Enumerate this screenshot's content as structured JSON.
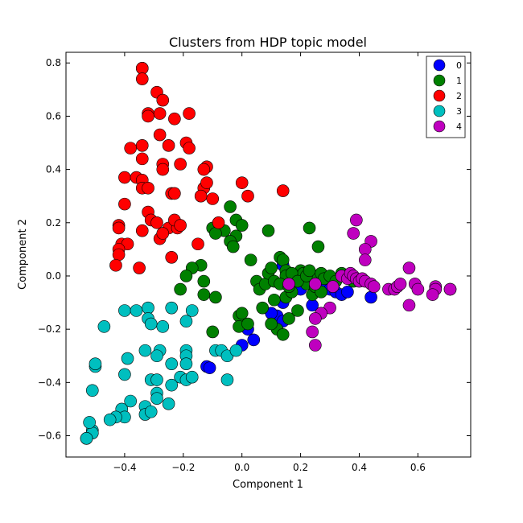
{
  "chart_data": {
    "type": "scatter",
    "title": "Clusters from HDP topic model",
    "xlabel": "Component 1",
    "ylabel": "Component 2",
    "xlim": [
      -0.6,
      0.78
    ],
    "ylim": [
      -0.68,
      0.84
    ],
    "xticks": [
      -0.4,
      -0.2,
      0.0,
      0.2,
      0.4,
      0.6
    ],
    "xtick_labels": [
      "−0.4",
      "−0.2",
      "0.0",
      "0.2",
      "0.4",
      "0.6"
    ],
    "yticks": [
      -0.6,
      -0.4,
      -0.2,
      0.0,
      0.2,
      0.4,
      0.6,
      0.8
    ],
    "ytick_labels": [
      "−0.6",
      "−0.4",
      "−0.2",
      "0.0",
      "0.2",
      "0.4",
      "0.6",
      "0.8"
    ],
    "grid": false,
    "legend_position": "top-right",
    "series": [
      {
        "name": "0",
        "color": "#0000ff",
        "points": [
          [
            0.14,
            0.04
          ],
          [
            0.16,
            0.01
          ],
          [
            0.18,
            0.0
          ],
          [
            0.2,
            -0.01
          ],
          [
            0.22,
            -0.02
          ],
          [
            0.24,
            -0.03
          ],
          [
            0.26,
            -0.05
          ],
          [
            0.28,
            -0.04
          ],
          [
            0.3,
            -0.05
          ],
          [
            0.32,
            -0.06
          ],
          [
            0.34,
            -0.07
          ],
          [
            0.36,
            -0.06
          ],
          [
            0.44,
            -0.08
          ],
          [
            0.2,
            -0.05
          ],
          [
            0.24,
            -0.11
          ],
          [
            0.14,
            -0.1
          ],
          [
            0.12,
            -0.15
          ],
          [
            0.14,
            -0.17
          ],
          [
            0.1,
            -0.14
          ],
          [
            0.02,
            -0.2
          ],
          [
            0.04,
            -0.24
          ],
          [
            0.0,
            -0.26
          ],
          [
            -0.12,
            -0.34
          ],
          [
            -0.11,
            -0.345
          ]
        ]
      },
      {
        "name": "1",
        "color": "#008000",
        "points": [
          [
            -0.04,
            0.26
          ],
          [
            -0.02,
            0.21
          ],
          [
            0.0,
            0.19
          ],
          [
            -0.06,
            0.17
          ],
          [
            -0.02,
            0.15
          ],
          [
            -0.04,
            0.13
          ],
          [
            -0.03,
            0.11
          ],
          [
            -0.1,
            0.18
          ],
          [
            -0.09,
            0.16
          ],
          [
            0.09,
            0.17
          ],
          [
            0.03,
            0.06
          ],
          [
            -0.14,
            0.04
          ],
          [
            -0.17,
            0.03
          ],
          [
            -0.19,
            -0.0
          ],
          [
            -0.21,
            -0.05
          ],
          [
            -0.13,
            -0.02
          ],
          [
            -0.09,
            -0.08
          ],
          [
            -0.13,
            -0.07
          ],
          [
            -0.1,
            -0.21
          ],
          [
            -0.01,
            -0.15
          ],
          [
            0.0,
            -0.14
          ],
          [
            -0.01,
            -0.19
          ],
          [
            0.02,
            -0.18
          ],
          [
            0.05,
            -0.02
          ],
          [
            0.06,
            -0.05
          ],
          [
            0.07,
            -0.12
          ],
          [
            0.08,
            -0.03
          ],
          [
            0.09,
            0.01
          ],
          [
            0.1,
            0.03
          ],
          [
            0.11,
            -0.02
          ],
          [
            0.11,
            -0.09
          ],
          [
            0.12,
            -0.2
          ],
          [
            0.13,
            0.07
          ],
          [
            0.14,
            0.06
          ],
          [
            0.15,
            0.02
          ],
          [
            0.15,
            -0.08
          ],
          [
            0.16,
            -0.16
          ],
          [
            0.17,
            -0.06
          ],
          [
            0.18,
            0.0
          ],
          [
            0.19,
            -0.13
          ],
          [
            0.2,
            0.02
          ],
          [
            0.21,
            0.01
          ],
          [
            0.22,
            -0.03
          ],
          [
            0.23,
            0.18
          ],
          [
            0.24,
            -0.07
          ],
          [
            0.25,
            0.0
          ],
          [
            0.26,
            0.11
          ],
          [
            0.27,
            0.01
          ],
          [
            0.28,
            -0.01
          ],
          [
            0.3,
            0.0
          ],
          [
            0.32,
            -0.02
          ],
          [
            0.34,
            0.01
          ],
          [
            0.36,
            0.0
          ],
          [
            0.38,
            -0.02
          ],
          [
            0.14,
            -0.22
          ],
          [
            0.1,
            -0.18
          ],
          [
            0.15,
            0.0
          ],
          [
            0.17,
            0.01
          ],
          [
            0.19,
            -0.02
          ],
          [
            0.22,
            0.0
          ],
          [
            0.25,
            -0.04
          ],
          [
            0.13,
            -0.03
          ],
          [
            0.16,
            -0.04
          ],
          [
            0.23,
            0.02
          ],
          [
            0.27,
            -0.06
          ]
        ]
      },
      {
        "name": "2",
        "color": "#ff0000",
        "points": [
          [
            -0.34,
            0.78
          ],
          [
            -0.34,
            0.78
          ],
          [
            -0.34,
            0.74
          ],
          [
            -0.29,
            0.69
          ],
          [
            -0.27,
            0.66
          ],
          [
            -0.32,
            0.61
          ],
          [
            -0.32,
            0.6
          ],
          [
            -0.28,
            0.61
          ],
          [
            -0.23,
            0.59
          ],
          [
            -0.18,
            0.61
          ],
          [
            -0.28,
            0.53
          ],
          [
            -0.25,
            0.49
          ],
          [
            -0.19,
            0.5
          ],
          [
            -0.18,
            0.48
          ],
          [
            -0.38,
            0.48
          ],
          [
            -0.34,
            0.49
          ],
          [
            -0.34,
            0.44
          ],
          [
            -0.27,
            0.42
          ],
          [
            -0.27,
            0.4
          ],
          [
            -0.21,
            0.42
          ],
          [
            -0.12,
            0.41
          ],
          [
            -0.13,
            0.4
          ],
          [
            -0.4,
            0.37
          ],
          [
            -0.36,
            0.37
          ],
          [
            -0.34,
            0.36
          ],
          [
            -0.34,
            0.33
          ],
          [
            -0.32,
            0.33
          ],
          [
            -0.24,
            0.31
          ],
          [
            -0.23,
            0.31
          ],
          [
            -0.13,
            0.33
          ],
          [
            -0.12,
            0.35
          ],
          [
            -0.14,
            0.3
          ],
          [
            -0.1,
            0.29
          ],
          [
            0.0,
            0.35
          ],
          [
            0.02,
            0.3
          ],
          [
            0.14,
            0.32
          ],
          [
            -0.4,
            0.27
          ],
          [
            -0.32,
            0.24
          ],
          [
            -0.31,
            0.21
          ],
          [
            -0.29,
            0.2
          ],
          [
            -0.34,
            0.17
          ],
          [
            -0.25,
            0.18
          ],
          [
            -0.22,
            0.18
          ],
          [
            -0.23,
            0.21
          ],
          [
            -0.21,
            0.19
          ],
          [
            -0.08,
            0.2
          ],
          [
            -0.42,
            0.19
          ],
          [
            -0.42,
            0.18
          ],
          [
            -0.41,
            0.12
          ],
          [
            -0.39,
            0.12
          ],
          [
            -0.42,
            0.1
          ],
          [
            -0.42,
            0.08
          ],
          [
            -0.43,
            0.04
          ],
          [
            -0.35,
            0.03
          ],
          [
            -0.28,
            0.14
          ],
          [
            -0.27,
            0.16
          ],
          [
            -0.24,
            0.07
          ],
          [
            -0.15,
            0.12
          ]
        ]
      },
      {
        "name": "3",
        "color": "#00bfbf",
        "points": [
          [
            -0.4,
            -0.13
          ],
          [
            -0.36,
            -0.13
          ],
          [
            -0.32,
            -0.12
          ],
          [
            -0.24,
            -0.12
          ],
          [
            -0.17,
            -0.13
          ],
          [
            -0.47,
            -0.19
          ],
          [
            -0.32,
            -0.16
          ],
          [
            -0.31,
            -0.18
          ],
          [
            -0.27,
            -0.19
          ],
          [
            -0.19,
            -0.17
          ],
          [
            -0.09,
            -0.28
          ],
          [
            -0.07,
            -0.28
          ],
          [
            -0.05,
            -0.3
          ],
          [
            -0.02,
            -0.28
          ],
          [
            -0.05,
            -0.39
          ],
          [
            -0.19,
            -0.28
          ],
          [
            -0.19,
            -0.3
          ],
          [
            -0.19,
            -0.33
          ],
          [
            -0.24,
            -0.33
          ],
          [
            -0.28,
            -0.28
          ],
          [
            -0.29,
            -0.3
          ],
          [
            -0.39,
            -0.31
          ],
          [
            -0.4,
            -0.37
          ],
          [
            -0.33,
            -0.28
          ],
          [
            -0.5,
            -0.34
          ],
          [
            -0.5,
            -0.33
          ],
          [
            -0.31,
            -0.39
          ],
          [
            -0.29,
            -0.39
          ],
          [
            -0.21,
            -0.38
          ],
          [
            -0.19,
            -0.39
          ],
          [
            -0.17,
            -0.38
          ],
          [
            -0.24,
            -0.41
          ],
          [
            -0.51,
            -0.43
          ],
          [
            -0.38,
            -0.47
          ],
          [
            -0.29,
            -0.44
          ],
          [
            -0.29,
            -0.46
          ],
          [
            -0.33,
            -0.49
          ],
          [
            -0.33,
            -0.52
          ],
          [
            -0.31,
            -0.51
          ],
          [
            -0.25,
            -0.48
          ],
          [
            -0.41,
            -0.5
          ],
          [
            -0.4,
            -0.53
          ],
          [
            -0.43,
            -0.53
          ],
          [
            -0.45,
            -0.54
          ],
          [
            -0.51,
            -0.58
          ],
          [
            -0.51,
            -0.59
          ],
          [
            -0.52,
            -0.55
          ],
          [
            -0.53,
            -0.61
          ],
          [
            -0.53,
            -0.61
          ]
        ]
      },
      {
        "name": "4",
        "color": "#bf00bf",
        "points": [
          [
            0.39,
            0.21
          ],
          [
            0.38,
            0.16
          ],
          [
            0.44,
            0.13
          ],
          [
            0.42,
            0.1
          ],
          [
            0.42,
            0.06
          ],
          [
            0.57,
            0.03
          ],
          [
            0.34,
            0.0
          ],
          [
            0.36,
            -0.01
          ],
          [
            0.37,
            0.01
          ],
          [
            0.38,
            0.0
          ],
          [
            0.39,
            -0.01
          ],
          [
            0.4,
            -0.02
          ],
          [
            0.41,
            -0.01
          ],
          [
            0.42,
            -0.02
          ],
          [
            0.44,
            -0.03
          ],
          [
            0.45,
            -0.04
          ],
          [
            0.5,
            -0.05
          ],
          [
            0.52,
            -0.05
          ],
          [
            0.53,
            -0.04
          ],
          [
            0.54,
            -0.03
          ],
          [
            0.59,
            -0.03
          ],
          [
            0.6,
            -0.05
          ],
          [
            0.66,
            -0.04
          ],
          [
            0.66,
            -0.05
          ],
          [
            0.71,
            -0.05
          ],
          [
            0.71,
            -0.05
          ],
          [
            0.65,
            -0.07
          ],
          [
            0.57,
            -0.11
          ],
          [
            0.31,
            -0.04
          ],
          [
            0.3,
            -0.12
          ],
          [
            0.27,
            -0.14
          ],
          [
            0.25,
            -0.16
          ],
          [
            0.24,
            -0.21
          ],
          [
            0.25,
            -0.26
          ],
          [
            0.16,
            -0.03
          ],
          [
            0.25,
            -0.03
          ]
        ]
      }
    ]
  }
}
